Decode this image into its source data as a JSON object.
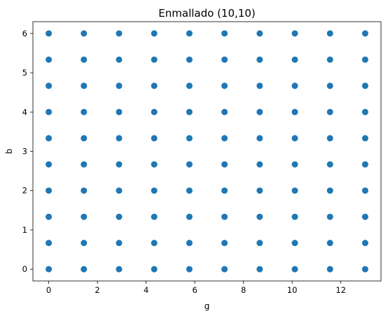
{
  "chart_data": {
    "type": "scatter",
    "title": "Enmallado (10,10)",
    "xlabel": "g",
    "ylabel": "b",
    "x_ticks": [
      0,
      2,
      4,
      6,
      8,
      10,
      12
    ],
    "y_ticks": [
      0,
      1,
      2,
      3,
      4,
      5,
      6
    ],
    "xlim": [
      -0.65,
      13.65
    ],
    "ylim": [
      -0.3,
      6.3
    ],
    "grid": false,
    "marker_color": "#1f77b4",
    "series": [
      {
        "x": [
          0,
          1.444,
          2.889,
          4.333,
          5.778,
          7.222,
          8.667,
          10.111,
          11.556,
          13
        ],
        "y": [
          0,
          0.667,
          1.333,
          2,
          2.667,
          3.333,
          4,
          4.667,
          5.333,
          6
        ]
      }
    ]
  }
}
